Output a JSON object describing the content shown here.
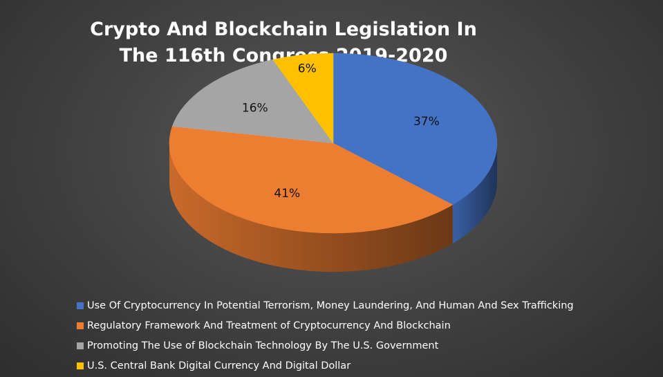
{
  "chart_data": {
    "type": "pie",
    "title_lines": [
      "Crypto And Blockchain Legislation In",
      "The 116th Congress 2019-2020"
    ],
    "legend_position": "bottom",
    "slices": [
      {
        "label": "Use Of Cryptocurrency In Potential Terrorism, Money Laundering, And Human And Sex Trafficking",
        "value": 37,
        "display": "37%",
        "color": "#4472C4"
      },
      {
        "label": "Regulatory Framework And Treatment of Cryptocurrency And Blockchain",
        "value": 41,
        "display": "41%",
        "color": "#ED7D31"
      },
      {
        "label": "Promoting The Use of Blockchain Technology By The U.S. Government",
        "value": 16,
        "display": "16%",
        "color": "#A5A5A5"
      },
      {
        "label": "U.S. Central Bank Digital Currency And Digital Dollar",
        "value": 6,
        "display": "6%",
        "color": "#FFC000"
      }
    ]
  }
}
